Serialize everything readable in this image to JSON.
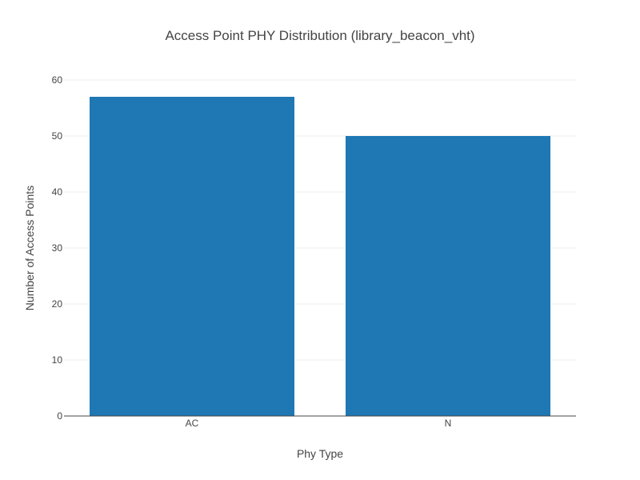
{
  "chart_data": {
    "type": "bar",
    "title": "Access Point PHY Distribution (library_beacon_vht)",
    "xlabel": "Phy Type",
    "ylabel": "Number of Access Points",
    "categories": [
      "AC",
      "N"
    ],
    "values": [
      57,
      50
    ],
    "ylim": [
      0,
      60
    ],
    "yticks": [
      0,
      10,
      20,
      30,
      40,
      50,
      60
    ],
    "grid": true,
    "legend": false,
    "bar_color": "#1f77b4"
  }
}
